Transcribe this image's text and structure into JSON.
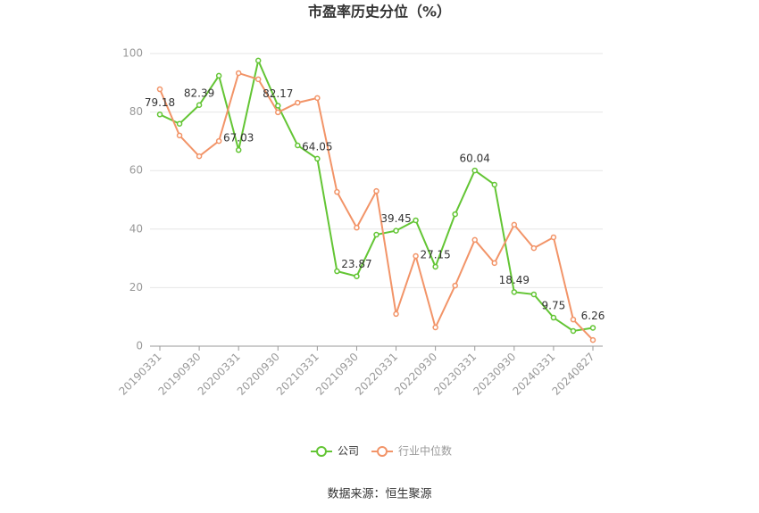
{
  "chart_data": {
    "type": "line",
    "title": "市盈率历史分位（%）",
    "categories": [
      "20190331",
      null,
      "20190930",
      null,
      "20200331",
      null,
      "20200930",
      null,
      "20210331",
      null,
      "20210930",
      null,
      "20220331",
      null,
      "20220930",
      null,
      "20230331",
      null,
      "20230930",
      null,
      "20240331",
      null,
      "20240827"
    ],
    "series": [
      {
        "name": "公司",
        "color": "#63c534",
        "values": [
          79.18,
          76,
          82.39,
          92.4,
          67.03,
          97.6,
          82.17,
          68.6,
          64.05,
          25.6,
          23.87,
          38.1,
          39.45,
          43,
          27.15,
          45.1,
          60.04,
          55.2,
          18.49,
          17.7,
          9.75,
          5.2,
          6.26
        ]
      },
      {
        "name": "行业中位数",
        "color": "#f29468",
        "values": [
          87.8,
          72,
          64.9,
          70.1,
          93.3,
          91.2,
          79.9,
          83.2,
          84.8,
          52.7,
          40.5,
          53,
          11,
          30.8,
          6.4,
          20.7,
          36.3,
          28.4,
          41.5,
          33.5,
          37.2,
          9.1,
          2.1
        ]
      }
    ],
    "ylim": [
      0,
      100
    ],
    "yticks": [
      0,
      20,
      40,
      60,
      80,
      100
    ],
    "grid": true,
    "legend": "bottom",
    "source": "数据来源：恒生聚源"
  }
}
